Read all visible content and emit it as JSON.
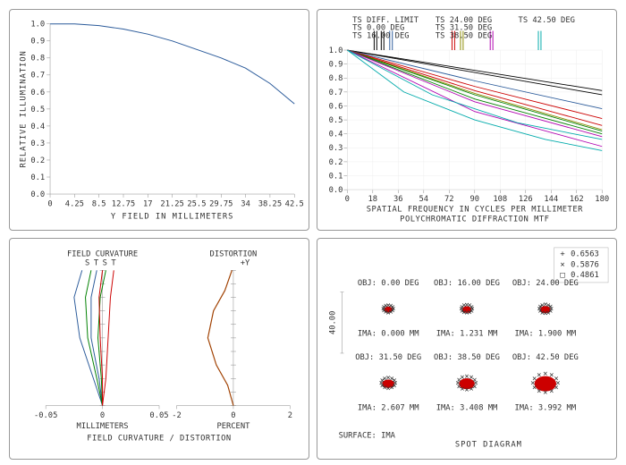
{
  "illum": {
    "title": "Y FIELD IN MILLIMETERS",
    "ylabel": "RELATIVE ILLUMINATION",
    "xticks": [
      0,
      4.25,
      8.5,
      12.75,
      17,
      21.25,
      25.5,
      29.75,
      34,
      38.25,
      42.5
    ],
    "yticks": [
      0,
      0.1,
      0.2,
      0.3,
      0.4,
      0.5,
      0.6,
      0.7,
      0.8,
      0.9,
      1.0
    ],
    "color": "#2a5a9a",
    "pts": [
      [
        0,
        1.0
      ],
      [
        4.25,
        1.0
      ],
      [
        8.5,
        0.99
      ],
      [
        12.75,
        0.97
      ],
      [
        17,
        0.94
      ],
      [
        21.25,
        0.9
      ],
      [
        25.5,
        0.85
      ],
      [
        29.75,
        0.8
      ],
      [
        34,
        0.74
      ],
      [
        38.25,
        0.65
      ],
      [
        42.5,
        0.53
      ]
    ]
  },
  "mtf": {
    "xlabel": "SPATIAL FREQUENCY IN CYCLES PER MILLIMETER",
    "title": "POLYCHROMATIC DIFFRACTION MTF",
    "xticks": [
      0,
      18,
      36,
      54,
      72,
      90,
      108,
      126,
      144,
      162,
      180
    ],
    "yticks": [
      0,
      0.1,
      0.2,
      0.3,
      0.4,
      0.5,
      0.6,
      0.7,
      0.8,
      0.9,
      1.0
    ],
    "legends": [
      {
        "txt": "TS DIFF. LIMIT",
        "x": 19,
        "c": "#000"
      },
      {
        "txt": "TS 0.00 DEG",
        "x": 24,
        "c": "#000"
      },
      {
        "txt": "TS 16.00 DEG",
        "x": 30,
        "c": "#2a5a9a"
      },
      {
        "txt": "TS 24.00 DEG",
        "x": 74,
        "c": "#c00"
      },
      {
        "txt": "TS 31.50 DEG",
        "x": 80,
        "c": "#8a8a00"
      },
      {
        "txt": "TS 38.50 DEG",
        "x": 101,
        "c": "#b000b0"
      },
      {
        "txt": "TS 42.50 DEG",
        "x": 135,
        "c": "#00aaaa"
      }
    ],
    "curves": [
      {
        "c": "#000",
        "d": [
          [
            0,
            1
          ],
          [
            180,
            0.71
          ]
        ]
      },
      {
        "c": "#000",
        "d": [
          [
            0,
            1
          ],
          [
            180,
            0.68
          ]
        ]
      },
      {
        "c": "#2a5a9a",
        "d": [
          [
            0,
            1
          ],
          [
            90,
            0.78
          ],
          [
            180,
            0.58
          ]
        ]
      },
      {
        "c": "#c00",
        "d": [
          [
            0,
            1
          ],
          [
            90,
            0.74
          ],
          [
            180,
            0.51
          ]
        ]
      },
      {
        "c": "#c00",
        "d": [
          [
            0,
            1
          ],
          [
            90,
            0.71
          ],
          [
            180,
            0.46
          ]
        ]
      },
      {
        "c": "#8a8a00",
        "d": [
          [
            0,
            1
          ],
          [
            90,
            0.69
          ],
          [
            180,
            0.43
          ]
        ]
      },
      {
        "c": "#008000",
        "d": [
          [
            0,
            1
          ],
          [
            90,
            0.68
          ],
          [
            180,
            0.42
          ]
        ]
      },
      {
        "c": "#008000",
        "d": [
          [
            0,
            1
          ],
          [
            90,
            0.65
          ],
          [
            180,
            0.4
          ]
        ]
      },
      {
        "c": "#b000b0",
        "d": [
          [
            0,
            1
          ],
          [
            90,
            0.63
          ],
          [
            180,
            0.38
          ]
        ]
      },
      {
        "c": "#b000b0",
        "d": [
          [
            0,
            1
          ],
          [
            90,
            0.56
          ],
          [
            180,
            0.31
          ]
        ]
      },
      {
        "c": "#00aaaa",
        "d": [
          [
            0,
            1
          ],
          [
            60,
            0.68
          ],
          [
            120,
            0.48
          ],
          [
            180,
            0.36
          ]
        ]
      },
      {
        "c": "#00aaaa",
        "d": [
          [
            0,
            1
          ],
          [
            40,
            0.7
          ],
          [
            90,
            0.5
          ],
          [
            140,
            0.36
          ],
          [
            180,
            0.28
          ]
        ]
      }
    ]
  },
  "fcd": {
    "top_l": "FIELD CURVATURE",
    "top_r": "DISTORTION",
    "bot": "FIELD CURVATURE / DISTORTION",
    "xl_l": "MILLIMETERS",
    "xl_r": "PERCENT",
    "xticks_l": [
      -0.05,
      0.0,
      0.05
    ],
    "xticks_r": [
      -2,
      0,
      2
    ],
    "fc_curves": [
      {
        "c": "#2a5a9a",
        "pts": [
          [
            0,
            0
          ],
          [
            -0.008,
            0.2
          ],
          [
            -0.02,
            0.5
          ],
          [
            -0.025,
            0.8
          ],
          [
            -0.018,
            1.0
          ]
        ]
      },
      {
        "c": "#2a5a9a",
        "pts": [
          [
            0,
            0
          ],
          [
            -0.003,
            0.2
          ],
          [
            -0.01,
            0.5
          ],
          [
            -0.01,
            0.8
          ],
          [
            -0.005,
            1.0
          ]
        ]
      },
      {
        "c": "#008000",
        "pts": [
          [
            0,
            0
          ],
          [
            -0.005,
            0.2
          ],
          [
            -0.013,
            0.5
          ],
          [
            -0.015,
            0.8
          ],
          [
            -0.01,
            1.0
          ]
        ]
      },
      {
        "c": "#008000",
        "pts": [
          [
            0,
            0
          ],
          [
            -0.001,
            0.2
          ],
          [
            -0.004,
            0.5
          ],
          [
            -0.002,
            0.8
          ],
          [
            0.003,
            1.0
          ]
        ]
      },
      {
        "c": "#c00",
        "pts": [
          [
            0,
            0
          ],
          [
            0.003,
            0.2
          ],
          [
            0.005,
            0.5
          ],
          [
            0.007,
            0.8
          ],
          [
            0.01,
            1.0
          ]
        ]
      },
      {
        "c": "#c00",
        "pts": [
          [
            0,
            0
          ],
          [
            0.0,
            0.2
          ],
          [
            -0.002,
            0.5
          ],
          [
            -0.003,
            0.8
          ],
          [
            0.0,
            1.0
          ]
        ]
      }
    ],
    "st_labels": [
      {
        "t": "S",
        "c": "#2a5a9a"
      },
      {
        "t": "T",
        "c": "#2a5a9a"
      },
      {
        "t": "S",
        "c": "#c00"
      },
      {
        "t": "T",
        "c": "#c00"
      }
    ],
    "dist": {
      "c": "#a04000",
      "pts": [
        [
          0,
          0
        ],
        [
          -0.2,
          0.15
        ],
        [
          -0.6,
          0.3
        ],
        [
          -0.9,
          0.5
        ],
        [
          -0.7,
          0.7
        ],
        [
          -0.3,
          0.85
        ],
        [
          -0.05,
          1.0
        ]
      ]
    },
    "yplus": "+Y"
  },
  "spot": {
    "title": "SPOT DIAGRAM",
    "surface": "SURFACE: IMA",
    "scale": "40.00",
    "legend": [
      {
        "sym": "+",
        "c": "#2a5a9a",
        "v": "0.6563"
      },
      {
        "sym": "×",
        "c": "#008000",
        "v": "0.5876"
      },
      {
        "sym": "□",
        "c": "#c00",
        "v": "0.4861"
      }
    ],
    "spots": [
      {
        "obj": "OBJ: 0.00 DEG",
        "ima": "IMA: 0.000 MM",
        "size": 1.0
      },
      {
        "obj": "OBJ: 16.00 DEG",
        "ima": "IMA: 1.231 MM",
        "size": 1.1
      },
      {
        "obj": "OBJ: 24.00 DEG",
        "ima": "IMA: 1.900 MM",
        "size": 1.2
      },
      {
        "obj": "OBJ: 31.50 DEG",
        "ima": "IMA: 2.607 MM",
        "size": 1.4
      },
      {
        "obj": "OBJ: 38.50 DEG",
        "ima": "IMA: 3.408 MM",
        "size": 1.8
      },
      {
        "obj": "OBJ: 42.50 DEG",
        "ima": "IMA: 3.992 MM",
        "size": 2.5
      }
    ]
  }
}
